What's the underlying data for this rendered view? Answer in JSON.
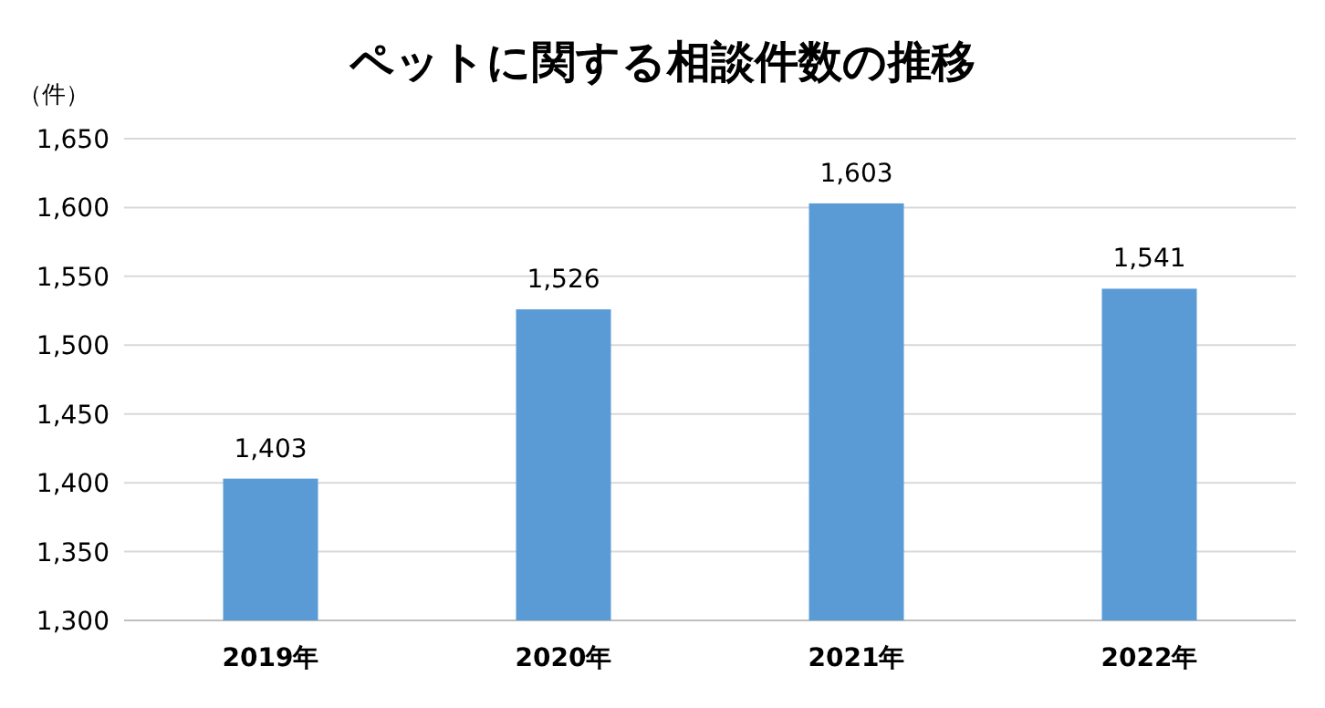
{
  "chart_data": {
    "type": "bar",
    "title": "ペットに関する相談件数の推移",
    "ylabel": "（件）",
    "categories": [
      "2019年",
      "2020年",
      "2021年",
      "2022年"
    ],
    "values": [
      1403,
      1526,
      1603,
      1541
    ],
    "color": "#5b9bd5",
    "ylim": [
      1300,
      1650
    ],
    "yticks": [
      {
        "value": 1300,
        "label": "1,300"
      },
      {
        "value": 1350,
        "label": "1,350"
      },
      {
        "value": 1400,
        "label": "1,400"
      },
      {
        "value": 1450,
        "label": "1,450"
      },
      {
        "value": 1500,
        "label": "1,500"
      },
      {
        "value": 1550,
        "label": "1,550"
      },
      {
        "value": 1600,
        "label": "1,600"
      },
      {
        "value": 1650,
        "label": "1,650"
      }
    ],
    "value_labels": [
      "1,403",
      "1,526",
      "1,603",
      "1,541"
    ],
    "grid": "y"
  }
}
